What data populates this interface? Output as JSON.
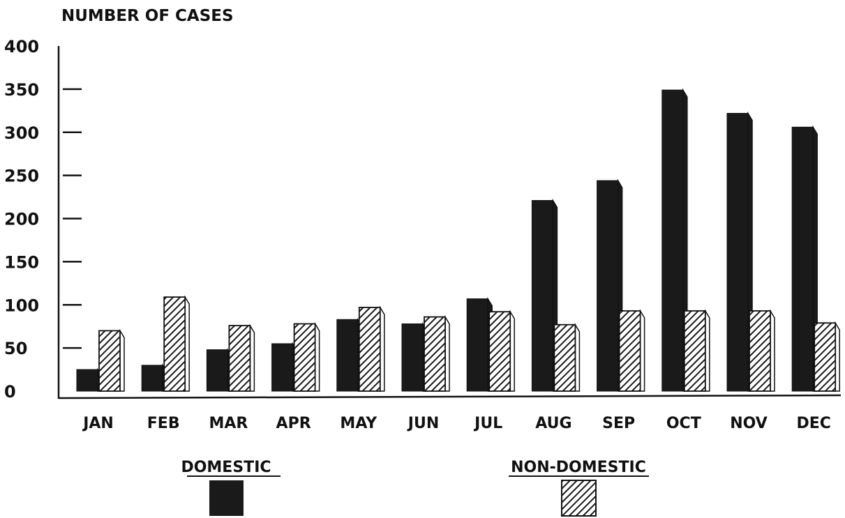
{
  "chart_data": {
    "type": "bar",
    "ylabel": "NUMBER OF CASES",
    "ylim": [
      0,
      400
    ],
    "yticks": [
      0,
      50,
      100,
      150,
      200,
      250,
      300,
      350,
      400
    ],
    "categories": [
      "JAN",
      "FEB",
      "MAR",
      "APR",
      "MAY",
      "JUN",
      "JUL",
      "AUG",
      "SEP",
      "OCT",
      "NOV",
      "DEC"
    ],
    "series": [
      {
        "name": "DOMESTIC",
        "pattern": "solid",
        "color": "#1a1a1a",
        "values": [
          25,
          30,
          48,
          55,
          83,
          78,
          107,
          221,
          244,
          349,
          322,
          306
        ]
      },
      {
        "name": "NON-DOMESTIC",
        "pattern": "hatched",
        "color": "#1a1a1a",
        "values": [
          70,
          109,
          76,
          78,
          97,
          86,
          92,
          77,
          93,
          93,
          93,
          79
        ]
      }
    ],
    "grid": false,
    "legend": "bottom"
  }
}
